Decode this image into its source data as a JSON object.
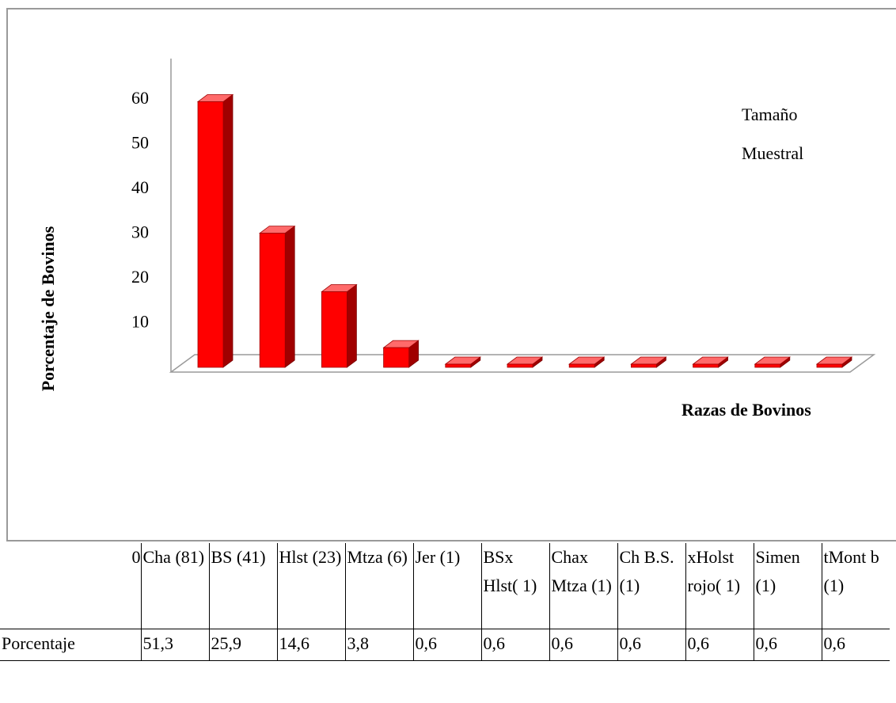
{
  "chart_data": {
    "type": "bar",
    "ylabel": "Porcentaje de Bovinos",
    "xlabel": "Razas de Bovinos",
    "legend": [
      "Tamaño",
      "Muestral"
    ],
    "legend_position": "top-right",
    "y_ticks": [
      "10",
      "20",
      "30",
      "40",
      "50",
      "60"
    ],
    "ylim": [
      0,
      60
    ],
    "bar_color": "#ff0000",
    "bar_side_color": "#a00000",
    "categories": [
      "Cha (81)",
      "BS (41)",
      "Hlst (23)",
      "Mtza (6)",
      "Jer (1)",
      "BSx Hlst(1)",
      "Chax Mtza (1)",
      "Ch B.S. (1)",
      "Holst rojo(1)",
      "Simen (1)",
      "Mont b (1)"
    ],
    "values": [
      51.3,
      25.9,
      14.6,
      3.8,
      0.6,
      0.6,
      0.6,
      0.6,
      0.6,
      0.6,
      0.6
    ]
  },
  "table": {
    "zero_label": "0",
    "headers": [
      "Cha (81)",
      "BS (41)",
      "Hlst (23)",
      "Mtza (6)",
      "Jer (1)",
      "BSx Hlst( 1)",
      "Chax Mtza (1)",
      "Ch B.S. (1)",
      "xHolst rojo( 1)",
      "Simen (1)",
      "tMont b (1)"
    ],
    "row_label": "Porcentaje",
    "values": [
      "51,3",
      "25,9",
      "14,6",
      "3,8",
      "0,6",
      "0,6",
      "0,6",
      "0,6",
      "0,6",
      "0,6",
      "0,6"
    ]
  }
}
